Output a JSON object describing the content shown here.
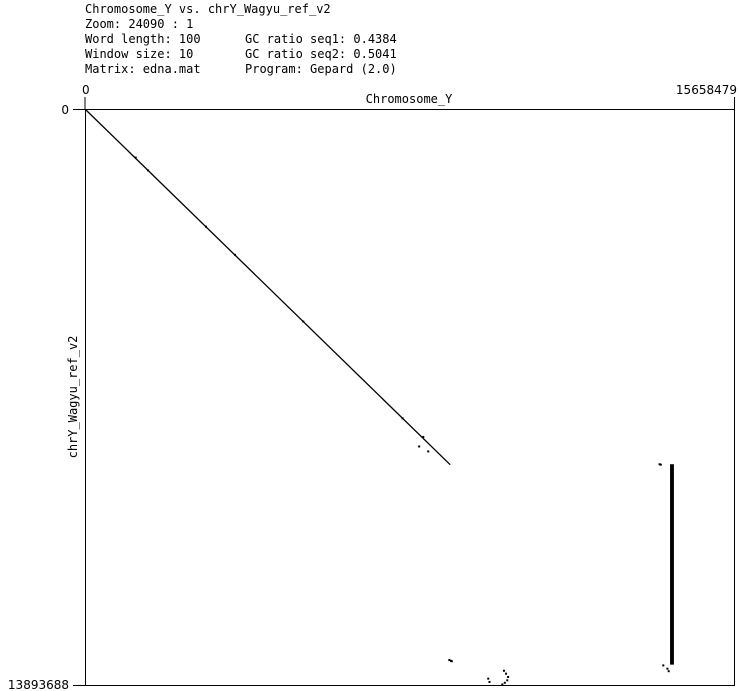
{
  "header": {
    "title": "Chromosome_Y vs. chrY_Wagyu_ref_v2",
    "zoom": "Zoom: 24090 : 1",
    "word_length": "Word length: 100",
    "window_size": "Window size: 10",
    "matrix": "Matrix: edna.mat",
    "gc_seq1": "GC ratio seq1: 0.4384",
    "gc_seq2": "GC ratio seq2: 0.5041",
    "program": "Program: Gepard (2.0)"
  },
  "chart_data": {
    "type": "scatter",
    "subtype": "dotplot",
    "xlabel": "Chromosome_Y",
    "ylabel": "chrY_Wagyu_ref_v2",
    "xlim": [
      0,
      15658479
    ],
    "ylim": [
      0,
      13893688
    ],
    "x_tick_labels": [
      "0",
      "15658479"
    ],
    "y_tick_labels": [
      "0",
      "13893688"
    ],
    "y_axis_inverted": true,
    "grid": false,
    "colors": {
      "dots": "#000000",
      "background": "#ffffff",
      "frame": "#000000"
    },
    "segments": [
      {
        "name": "main-diagonal",
        "x": [
          0,
          8800000
        ],
        "y": [
          0,
          8570000
        ]
      },
      {
        "name": "repeat-block-vertical",
        "x": [
          14140000,
          14140000
        ],
        "y": [
          8560000,
          13400000
        ]
      },
      {
        "name": "repeat-block-vertical-2",
        "x": [
          14180000,
          14180000
        ],
        "y": [
          8560000,
          13400000
        ]
      }
    ],
    "points": [
      [
        1200000,
        1150000
      ],
      [
        1500000,
        1460000
      ],
      [
        2900000,
        2820000
      ],
      [
        3600000,
        3500000
      ],
      [
        5250000,
        5110000
      ],
      [
        7650000,
        7450000
      ],
      [
        8150000,
        7900000
      ],
      [
        8050000,
        8130000
      ],
      [
        8270000,
        8250000
      ],
      [
        13860000,
        8560000
      ],
      [
        13890000,
        8570000
      ],
      [
        8780000,
        13290000
      ],
      [
        8820000,
        13310000
      ],
      [
        8840000,
        13320000
      ],
      [
        13950000,
        13420000
      ],
      [
        14050000,
        13500000
      ],
      [
        14080000,
        13560000
      ],
      [
        10100000,
        13550000
      ],
      [
        10150000,
        13620000
      ],
      [
        10200000,
        13700000
      ],
      [
        10180000,
        13780000
      ],
      [
        10120000,
        13840000
      ],
      [
        9720000,
        13740000
      ],
      [
        9750000,
        13820000
      ],
      [
        10060000,
        13880000
      ]
    ]
  }
}
